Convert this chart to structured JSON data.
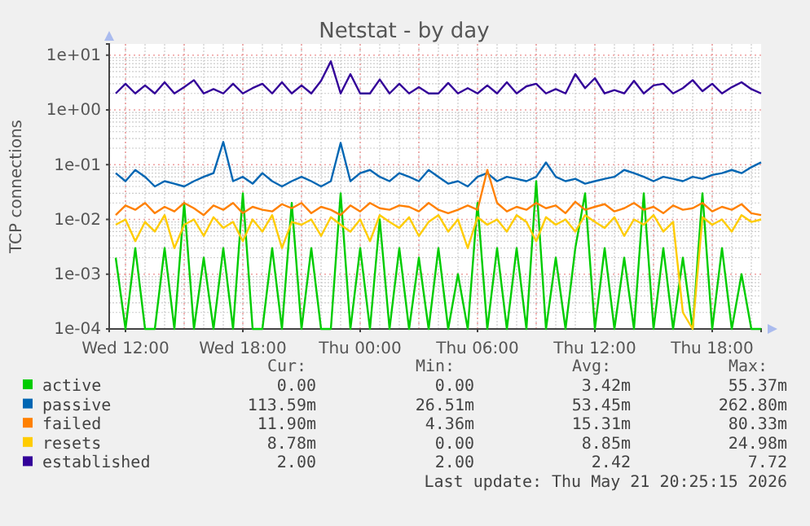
{
  "chart_data": {
    "type": "line",
    "title": "Netstat - by day",
    "ylabel": "TCP connections",
    "log": "y",
    "grid": true,
    "legend": "bottom",
    "marker": "none",
    "line_style": "solid",
    "xlim": [
      "2026-05-20T11:10",
      "2026-05-21T20:30"
    ],
    "xticks": [
      {
        "value": "2026-05-20T12:00",
        "label": "Wed 12:00"
      },
      {
        "value": "2026-05-20T18:00",
        "label": "Wed 18:00"
      },
      {
        "value": "2026-05-21T00:00",
        "label": "Thu 00:00"
      },
      {
        "value": "2026-05-21T06:00",
        "label": "Thu 06:00"
      },
      {
        "value": "2026-05-21T12:00",
        "label": "Thu 12:00"
      },
      {
        "value": "2026-05-21T18:00",
        "label": "Thu 18:00"
      }
    ],
    "ylim": [
      0.0001,
      16
    ],
    "yticks": [
      {
        "value": 0.0001,
        "label": "1e-04"
      },
      {
        "value": 0.001,
        "label": "1e-03"
      },
      {
        "value": 0.01,
        "label": "1e-02"
      },
      {
        "value": 0.1,
        "label": "1e-01"
      },
      {
        "value": 1,
        "label": "1e+00"
      },
      {
        "value": 10,
        "label": "1e+01"
      }
    ],
    "x": [
      "2026-05-20T11:30",
      "2026-05-20T12:00",
      "2026-05-20T12:30",
      "2026-05-20T13:00",
      "2026-05-20T13:30",
      "2026-05-20T14:00",
      "2026-05-20T14:30",
      "2026-05-20T15:00",
      "2026-05-20T15:30",
      "2026-05-20T16:00",
      "2026-05-20T16:30",
      "2026-05-20T17:00",
      "2026-05-20T17:30",
      "2026-05-20T18:00",
      "2026-05-20T18:30",
      "2026-05-20T19:00",
      "2026-05-20T19:30",
      "2026-05-20T20:00",
      "2026-05-20T20:30",
      "2026-05-20T21:00",
      "2026-05-20T21:30",
      "2026-05-20T22:00",
      "2026-05-20T22:30",
      "2026-05-20T23:00",
      "2026-05-20T23:30",
      "2026-05-21T00:00",
      "2026-05-21T00:30",
      "2026-05-21T01:00",
      "2026-05-21T01:30",
      "2026-05-21T02:00",
      "2026-05-21T02:30",
      "2026-05-21T03:00",
      "2026-05-21T03:30",
      "2026-05-21T04:00",
      "2026-05-21T04:30",
      "2026-05-21T05:00",
      "2026-05-21T05:30",
      "2026-05-21T06:00",
      "2026-05-21T06:30",
      "2026-05-21T07:00",
      "2026-05-21T07:30",
      "2026-05-21T08:00",
      "2026-05-21T08:30",
      "2026-05-21T09:00",
      "2026-05-21T09:30",
      "2026-05-21T10:00",
      "2026-05-21T10:30",
      "2026-05-21T11:00",
      "2026-05-21T11:30",
      "2026-05-21T12:00",
      "2026-05-21T12:30",
      "2026-05-21T13:00",
      "2026-05-21T13:30",
      "2026-05-21T14:00",
      "2026-05-21T14:30",
      "2026-05-21T15:00",
      "2026-05-21T15:30",
      "2026-05-21T16:00",
      "2026-05-21T16:30",
      "2026-05-21T17:00",
      "2026-05-21T17:30",
      "2026-05-21T18:00",
      "2026-05-21T18:30",
      "2026-05-21T19:00",
      "2026-05-21T19:30",
      "2026-05-21T20:00",
      "2026-05-21T20:30"
    ],
    "series": [
      {
        "name": "active",
        "color": "#00cc00",
        "values": [
          0.002,
          0.0001,
          0.003,
          0.0001,
          0.0001,
          0.003,
          0.0001,
          0.02,
          0.0001,
          0.002,
          0.0001,
          0.003,
          0.0001,
          0.03,
          0.0001,
          0.0001,
          0.003,
          0.0001,
          0.02,
          0.0001,
          0.003,
          0.0001,
          0.0001,
          0.03,
          0.0001,
          0.003,
          0.0001,
          0.01,
          0.0001,
          0.003,
          0.0001,
          0.002,
          0.0001,
          0.003,
          0.0001,
          0.001,
          0.0001,
          0.02,
          0.0001,
          0.003,
          0.0001,
          0.003,
          0.0001,
          0.05,
          0.0001,
          0.002,
          0.0001,
          0.003,
          0.03,
          0.0001,
          0.003,
          0.0001,
          0.002,
          0.0001,
          0.03,
          0.0001,
          0.003,
          0.0001,
          0.002,
          0.0001,
          0.03,
          0.0001,
          0.003,
          0.0001,
          0.001,
          0.0001,
          0.0001
        ]
      },
      {
        "name": "passive",
        "color": "#0066b3",
        "values": [
          0.07,
          0.05,
          0.08,
          0.06,
          0.04,
          0.05,
          0.045,
          0.04,
          0.05,
          0.06,
          0.07,
          0.26,
          0.05,
          0.06,
          0.045,
          0.07,
          0.05,
          0.04,
          0.05,
          0.06,
          0.05,
          0.04,
          0.05,
          0.25,
          0.05,
          0.07,
          0.08,
          0.06,
          0.05,
          0.07,
          0.06,
          0.05,
          0.08,
          0.06,
          0.045,
          0.05,
          0.04,
          0.06,
          0.07,
          0.05,
          0.06,
          0.055,
          0.05,
          0.06,
          0.11,
          0.06,
          0.05,
          0.055,
          0.045,
          0.05,
          0.055,
          0.06,
          0.08,
          0.07,
          0.06,
          0.05,
          0.06,
          0.055,
          0.05,
          0.06,
          0.055,
          0.065,
          0.07,
          0.08,
          0.07,
          0.09,
          0.11
        ]
      },
      {
        "name": "failed",
        "color": "#ff8000",
        "values": [
          0.012,
          0.018,
          0.015,
          0.02,
          0.013,
          0.017,
          0.014,
          0.02,
          0.016,
          0.012,
          0.018,
          0.015,
          0.02,
          0.013,
          0.017,
          0.015,
          0.014,
          0.019,
          0.016,
          0.02,
          0.013,
          0.017,
          0.015,
          0.012,
          0.018,
          0.014,
          0.02,
          0.016,
          0.015,
          0.018,
          0.017,
          0.014,
          0.02,
          0.015,
          0.013,
          0.015,
          0.018,
          0.015,
          0.08,
          0.02,
          0.014,
          0.017,
          0.015,
          0.02,
          0.016,
          0.018,
          0.013,
          0.021,
          0.015,
          0.017,
          0.019,
          0.014,
          0.016,
          0.02,
          0.015,
          0.017,
          0.013,
          0.018,
          0.015,
          0.016,
          0.02,
          0.014,
          0.017,
          0.015,
          0.019,
          0.013,
          0.012
        ]
      },
      {
        "name": "resets",
        "color": "#ffcc00",
        "values": [
          0.008,
          0.01,
          0.004,
          0.009,
          0.006,
          0.012,
          0.003,
          0.008,
          0.01,
          0.005,
          0.011,
          0.007,
          0.009,
          0.004,
          0.01,
          0.006,
          0.012,
          0.003,
          0.009,
          0.008,
          0.01,
          0.005,
          0.011,
          0.008,
          0.006,
          0.01,
          0.004,
          0.012,
          0.009,
          0.007,
          0.011,
          0.005,
          0.009,
          0.012,
          0.006,
          0.01,
          0.003,
          0.011,
          0.008,
          0.01,
          0.006,
          0.012,
          0.009,
          0.004,
          0.011,
          0.008,
          0.01,
          0.006,
          0.012,
          0.009,
          0.007,
          0.011,
          0.005,
          0.01,
          0.008,
          0.012,
          0.006,
          0.009,
          0.0002,
          0.0001,
          0.011,
          0.008,
          0.01,
          0.006,
          0.012,
          0.009,
          0.01
        ]
      },
      {
        "name": "established",
        "color": "#330099",
        "values": [
          2,
          3,
          2,
          2.8,
          2,
          3.2,
          2,
          2.6,
          3.5,
          2,
          2.4,
          2,
          3,
          2,
          2.5,
          3,
          2,
          3.2,
          2,
          2.8,
          2,
          3.4,
          7.7,
          2,
          4.5,
          2,
          2,
          3.6,
          2,
          3,
          2,
          2.6,
          2,
          2,
          3.1,
          2,
          2.5,
          2,
          2.8,
          2,
          3.2,
          2,
          2.7,
          3,
          2,
          2.4,
          2,
          4.5,
          2.5,
          3.8,
          2,
          2.3,
          2,
          3.4,
          2,
          2.8,
          3,
          2,
          2.5,
          3.5,
          2.2,
          3,
          2,
          2.6,
          3.2,
          2.4,
          2
        ]
      }
    ],
    "annotations": [
      "Cur:",
      "Min:",
      "Avg:",
      "Max:",
      "0.00",
      "0.00",
      "3.42m",
      "55.37m",
      "113.59m",
      "26.51m",
      "53.45m",
      "262.80m",
      "11.90m",
      "4.36m",
      "15.31m",
      "80.33m",
      "8.78m",
      "0.00",
      "8.85m",
      "24.98m",
      "2.00",
      "2.00",
      "2.42",
      "7.72",
      "Last update: Thu May 21 20:25:15 2026"
    ]
  }
}
